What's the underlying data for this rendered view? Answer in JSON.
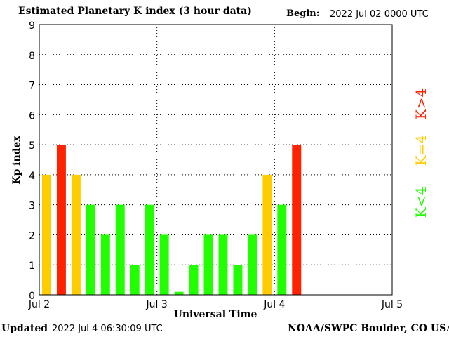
{
  "header": {
    "title": "Estimated Planetary K index (3 hour data)",
    "begin_label": "Begin:",
    "begin_value": "2022 Jul 02 0000 UTC"
  },
  "footer": {
    "updated_label": "Updated",
    "updated_value": "2022 Jul  4 06:30:09 UTC",
    "credit": "NOAA/SWPC Boulder, CO USA"
  },
  "colors": {
    "below4": "#22ff00",
    "equal4": "#ffcc00",
    "above4": "#ff2200"
  },
  "chart_data": {
    "type": "bar",
    "title": "Estimated Planetary K index (3 hour data)",
    "xlabel": "Universal Time",
    "ylabel": "Kp index",
    "ylim": [
      0,
      9
    ],
    "yticks": [
      0,
      1,
      2,
      3,
      4,
      5,
      6,
      7,
      8,
      9
    ],
    "xticks": [
      "Jul 2",
      "Jul 3",
      "Jul 4",
      "Jul 5"
    ],
    "bars_per_day": 8,
    "grid": true,
    "values": [
      4,
      5,
      4,
      3,
      2,
      3,
      1,
      3,
      2,
      0.1,
      1,
      2,
      2,
      1,
      2,
      4,
      3,
      5
    ],
    "legend": [
      {
        "label": "K<4",
        "color_key": "below4"
      },
      {
        "label": "K=4",
        "color_key": "equal4"
      },
      {
        "label": "K>4",
        "color_key": "above4"
      }
    ]
  }
}
